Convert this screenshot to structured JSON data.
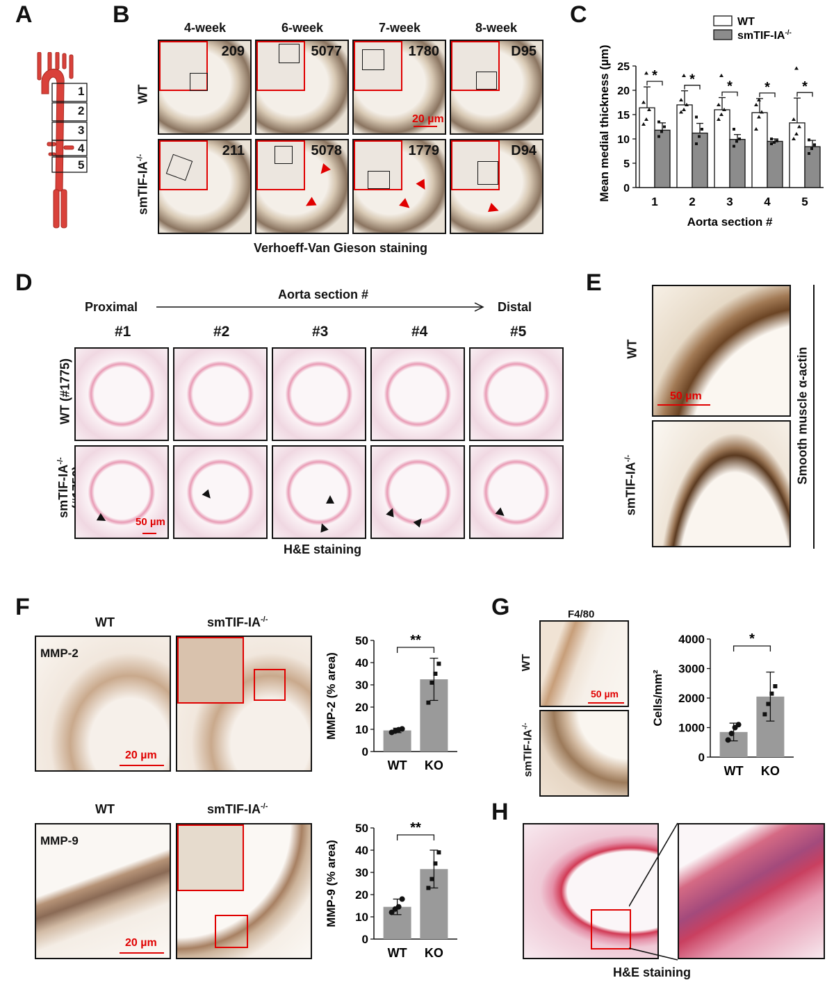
{
  "panels": {
    "A": "A",
    "B": "B",
    "C": "C",
    "D": "D",
    "E": "E",
    "F": "F",
    "G": "G",
    "H": "H"
  },
  "panelA": {
    "sections": [
      "1",
      "2",
      "3",
      "4",
      "5"
    ]
  },
  "panelB": {
    "columns": [
      "4-week",
      "6-week",
      "7-week",
      "8-week"
    ],
    "rows": [
      "WT",
      "smTIF-IA"
    ],
    "row_sup": "-/-",
    "wt_ids": [
      "209",
      "5077",
      "1780",
      "D95"
    ],
    "ko_ids": [
      "211",
      "5078",
      "1779",
      "D94"
    ],
    "scale": "20 µm",
    "caption": "Verhoeff-Van Gieson staining"
  },
  "panelC": {
    "legend": [
      "WT",
      "smTIF-IA"
    ],
    "legend_sup": "-/-",
    "ylabel": "Mean medial thickness (µm)",
    "xlabel": "Aorta section #",
    "sig": "*"
  },
  "panelD": {
    "proximal": "Proximal",
    "distal": "Distal",
    "axis_title": "Aorta section #",
    "columns": [
      "#1",
      "#2",
      "#3",
      "#4",
      "#5"
    ],
    "row_wt": "WT (#1775)",
    "row_ko": "smTIF-IA",
    "row_ko_sup": "-/-",
    "row_ko_id": "(#1756)",
    "scale": "50 µm",
    "caption": "H&E staining"
  },
  "panelE": {
    "row_wt": "WT",
    "row_ko": "smTIF-IA",
    "row_ko_sup": "-/-",
    "side": "Smooth muscle α-actin",
    "scale": "50 µm"
  },
  "panelF": {
    "col_wt": "WT",
    "col_ko": "smTIF-IA",
    "col_ko_sup": "-/-",
    "mmp2_label": "MMP-2",
    "mmp9_label": "MMP-9",
    "scale": "20 µm",
    "sig": "**"
  },
  "panelG": {
    "title": "F4/80",
    "row_wt": "WT",
    "row_ko": "smTIF-IA",
    "row_ko_sup": "-/-",
    "scale": "50 µm",
    "sig": "*"
  },
  "panelH": {
    "caption": "H&E staining"
  },
  "chart_data": [
    {
      "id": "C",
      "type": "bar",
      "categories": [
        "1",
        "2",
        "3",
        "4",
        "5"
      ],
      "series": [
        {
          "name": "WT",
          "values": [
            16.4,
            17.0,
            16.0,
            15.4,
            13.3
          ],
          "err": [
            4.3,
            2.9,
            2.5,
            2.9,
            5.1
          ],
          "color": "#ffffff",
          "points": [
            [
              13,
              14,
              16,
              17.5,
              23.5
            ],
            [
              15.5,
              16,
              17,
              18,
              23
            ],
            [
              14,
              15,
              16,
              17,
              23
            ],
            [
              12,
              14.5,
              15.5,
              17,
              18
            ],
            [
              10,
              11,
              12.5,
              14,
              24.5
            ]
          ]
        },
        {
          "name": "smTIF-IA-/-",
          "values": [
            11.8,
            11.2,
            9.9,
            9.5,
            8.4
          ],
          "err": [
            1.5,
            2.0,
            1.0,
            0.5,
            1.3
          ],
          "color": "#8c8c8c",
          "points": [
            [
              10.5,
              11.5,
              12.5,
              13.5
            ],
            [
              9,
              10.5,
              12,
              14.5
            ],
            [
              8.5,
              9.5,
              10,
              12
            ],
            [
              9,
              9.3,
              9.6,
              10
            ],
            [
              7,
              8,
              8.8,
              9.8
            ]
          ]
        }
      ],
      "xlabel": "Aorta section #",
      "ylabel": "Mean medial thickness (µm)",
      "ylim": [
        0,
        25
      ],
      "yticks": [
        0,
        5,
        10,
        15,
        20,
        25
      ]
    },
    {
      "id": "F-MMP-2",
      "type": "bar",
      "categories": [
        "WT",
        "KO"
      ],
      "values": [
        9.5,
        32.5
      ],
      "err": [
        1.0,
        9.5
      ],
      "points": [
        [
          8.6,
          9.2,
          9.8,
          10.2
        ],
        [
          22,
          31,
          35,
          39.5
        ]
      ],
      "ylabel": "MMP-2 (% area)",
      "ylim": [
        0,
        50
      ],
      "yticks": [
        0,
        10,
        20,
        30,
        40,
        50
      ],
      "sig": "**"
    },
    {
      "id": "F-MMP-9",
      "type": "bar",
      "categories": [
        "WT",
        "KO"
      ],
      "values": [
        14.5,
        31.5
      ],
      "err": [
        3.5,
        8.5
      ],
      "points": [
        [
          12,
          13.5,
          14.5,
          18
        ],
        [
          23,
          27,
          34,
          39
        ]
      ],
      "ylabel": "MMP-9 (% area)",
      "ylim": [
        0,
        50
      ],
      "yticks": [
        0,
        10,
        20,
        30,
        40,
        50
      ],
      "sig": "**"
    },
    {
      "id": "G",
      "type": "bar",
      "categories": [
        "WT",
        "KO"
      ],
      "values": [
        850,
        2050
      ],
      "err": [
        300,
        830
      ],
      "points": [
        [
          580,
          800,
          1000,
          1100
        ],
        [
          1450,
          1800,
          2150,
          2400
        ]
      ],
      "ylabel": "Cells/mm²",
      "ylim": [
        0,
        4000
      ],
      "yticks": [
        0,
        1000,
        2000,
        3000,
        4000
      ],
      "sig": "*"
    }
  ]
}
